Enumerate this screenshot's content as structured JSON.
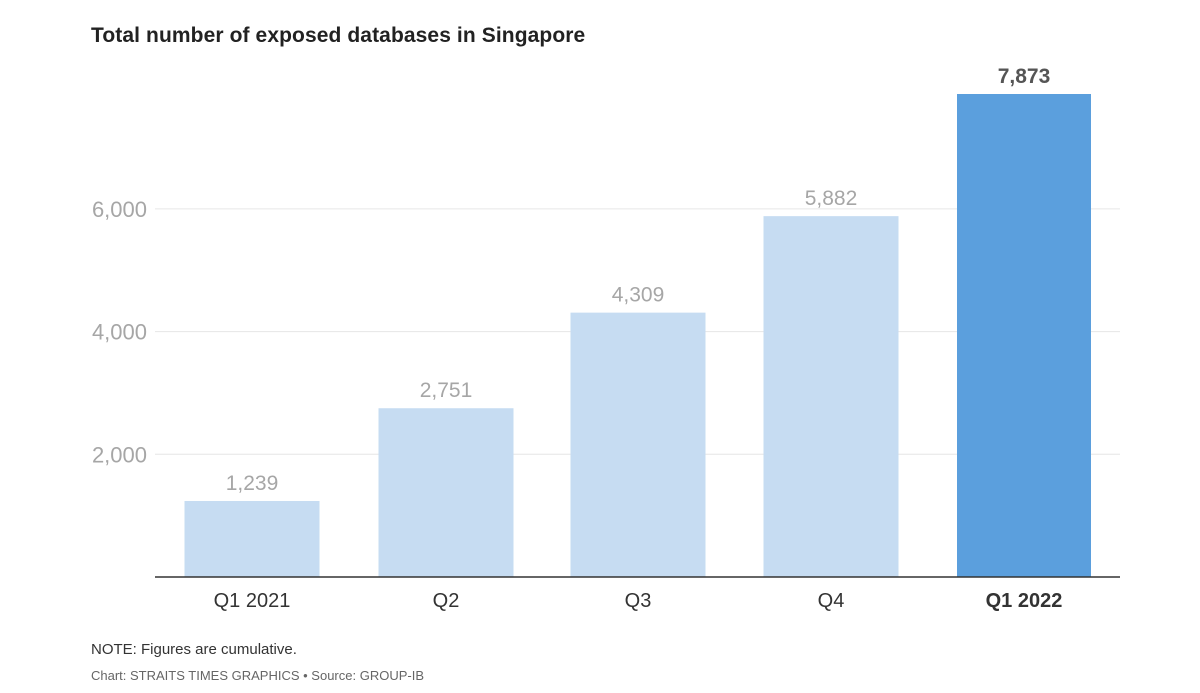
{
  "chart_data": {
    "type": "bar",
    "title": "Total number of exposed databases in Singapore",
    "categories": [
      "Q1 2021",
      "Q2",
      "Q3",
      "Q4",
      "Q1 2022"
    ],
    "values": [
      1239,
      2751,
      4309,
      5882,
      7873
    ],
    "value_labels": [
      "1,239",
      "2,751",
      "4,309",
      "5,882",
      "7,873"
    ],
    "highlight_index": 4,
    "yticks": [
      2000,
      4000,
      6000
    ],
    "ytick_labels": [
      "2,000",
      "4,000",
      "6,000"
    ],
    "ylim": [
      0,
      7873
    ],
    "xlabel": "",
    "ylabel": "",
    "grid": true,
    "colors": {
      "bar": "#c6dcf2",
      "highlight": "#5b9fdd",
      "grid": "#e6e6e6",
      "axis": "#333333",
      "value_label": "#a6a6a6",
      "highlight_label": "#555555",
      "tick_label": "#a6a6a6",
      "category_label": "#333333"
    }
  },
  "note": "NOTE: Figures are cumulative.",
  "credit": "Chart: STRAITS TIMES GRAPHICS • Source: GROUP-IB"
}
